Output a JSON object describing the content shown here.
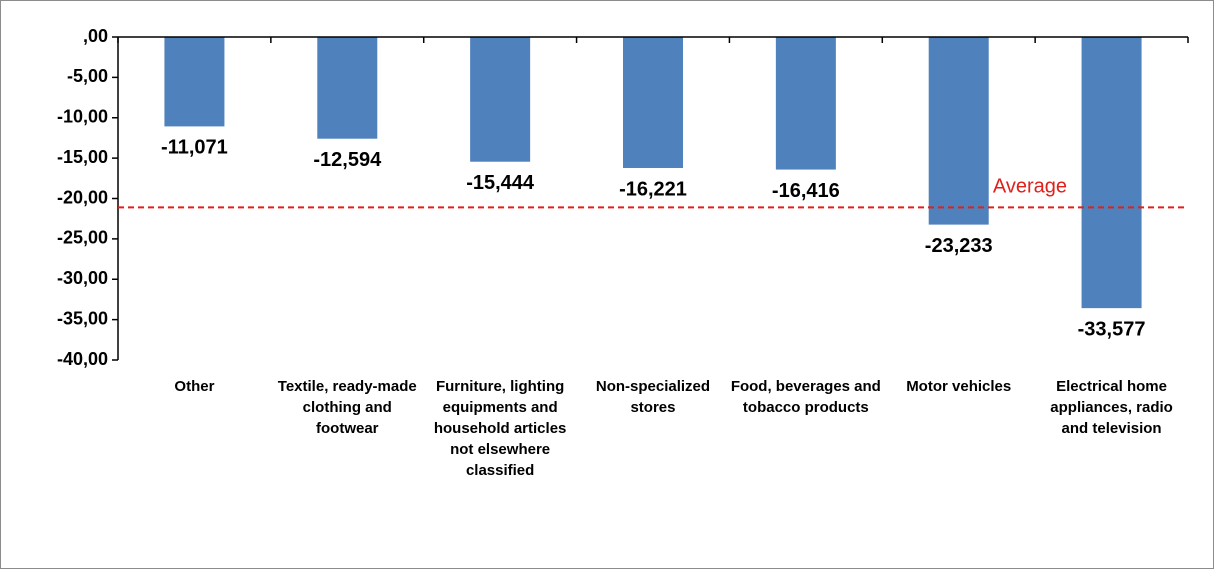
{
  "chart_data": {
    "type": "bar",
    "categories": [
      "Other",
      "Textile, ready-made clothing and footwear",
      "Furniture, lighting equipments and household articles not elsewhere classified",
      "Non-specialized stores",
      "Food, beverages and tobacco products",
      "Motor vehicles",
      "Electrical home appliances, radio and television"
    ],
    "values": [
      -11.071,
      -12.594,
      -15.444,
      -16.221,
      -16.416,
      -23.233,
      -33.577
    ],
    "value_labels": [
      "-11,071",
      "-12,594",
      "-15,444",
      "-16,221",
      "-16,416",
      "-23,233",
      "-33,577"
    ],
    "color": "#4f81bd",
    "ylim": [
      -40,
      0
    ],
    "yticks": [
      {
        "value": 0,
        "label": ",00"
      },
      {
        "value": -5,
        "label": "-5,00"
      },
      {
        "value": -10,
        "label": "-10,00"
      },
      {
        "value": -15,
        "label": "-15,00"
      },
      {
        "value": -20,
        "label": "-20,00"
      },
      {
        "value": -25,
        "label": "-25,00"
      },
      {
        "value": -30,
        "label": "-30,00"
      },
      {
        "value": -35,
        "label": "-35,00"
      },
      {
        "value": -40,
        "label": "-40,00"
      }
    ],
    "annotation": {
      "text": "Average",
      "value": -21.1,
      "color": "#e0201b"
    }
  }
}
